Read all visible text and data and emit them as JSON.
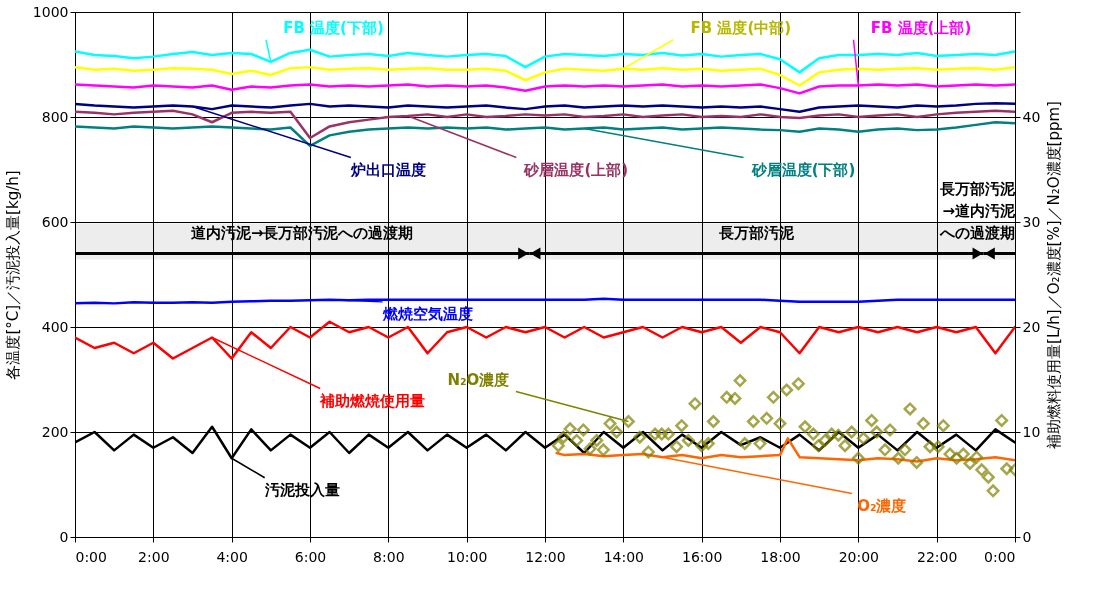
{
  "chart_data": {
    "type": "line",
    "ylabel": "各温度[°C]／汚泥投入量[kg/h]",
    "y2label": "補助燃料使用量[L/h]／O₂濃度[%]／N₂O濃度[ppm]",
    "xlim": [
      0,
      24
    ],
    "xticks": [
      {
        "value": 0,
        "label": "0:00"
      },
      {
        "value": 2,
        "label": "2:00"
      },
      {
        "value": 4,
        "label": "4:00"
      },
      {
        "value": 6,
        "label": "6:00"
      },
      {
        "value": 8,
        "label": "8:00"
      },
      {
        "value": 10,
        "label": "10:00"
      },
      {
        "value": 12,
        "label": "12:00"
      },
      {
        "value": 14,
        "label": "14:00"
      },
      {
        "value": 16,
        "label": "16:00"
      },
      {
        "value": 18,
        "label": "18:00"
      },
      {
        "value": 20,
        "label": "20:00"
      },
      {
        "value": 22,
        "label": "22:00"
      },
      {
        "value": 24,
        "label": "0:00"
      }
    ],
    "ylim": [
      0,
      1000
    ],
    "yticks": [
      0,
      200,
      400,
      600,
      800,
      1000
    ],
    "y2lim": [
      0,
      50
    ],
    "y2ticks": [
      0,
      10,
      20,
      30,
      40,
      {
        "value": 50,
        "label": null
      }
    ],
    "grid": true,
    "x": [
      0,
      0.5,
      1,
      1.5,
      2,
      2.5,
      3,
      3.5,
      4,
      4.5,
      5,
      5.5,
      6,
      6.5,
      7,
      7.5,
      8,
      8.5,
      9,
      9.5,
      10,
      10.5,
      11,
      11.5,
      12,
      12.5,
      13,
      13.5,
      14,
      14.5,
      15,
      15.5,
      16,
      16.5,
      17,
      17.5,
      18,
      18.5,
      19,
      19.5,
      20,
      20.5,
      21,
      21.5,
      22,
      22.5,
      23,
      23.5,
      24
    ],
    "series": [
      {
        "name": "FB 温度(下部)",
        "color": "#00ffff",
        "values": [
          925,
          918,
          916,
          912,
          915,
          920,
          924,
          918,
          922,
          920,
          905,
          922,
          928,
          915,
          918,
          920,
          916,
          922,
          918,
          915,
          918,
          920,
          916,
          895,
          915,
          920,
          918,
          916,
          920,
          918,
          922,
          917,
          920,
          915,
          918,
          920,
          910,
          885,
          912,
          918,
          918,
          920,
          918,
          922,
          916,
          918,
          920,
          918,
          925
        ]
      },
      {
        "name": "FB 温度(中部)",
        "color": "#ffff00",
        "values": [
          895,
          890,
          892,
          888,
          890,
          893,
          892,
          890,
          882,
          888,
          880,
          893,
          895,
          890,
          892,
          893,
          890,
          892,
          893,
          890,
          890,
          892,
          888,
          870,
          885,
          892,
          890,
          888,
          892,
          890,
          893,
          890,
          892,
          888,
          890,
          892,
          880,
          860,
          885,
          890,
          892,
          890,
          892,
          893,
          890,
          892,
          893,
          890,
          895
        ]
      },
      {
        "name": "FB 温度(上部)",
        "color": "#ff00ff",
        "values": [
          862,
          860,
          858,
          856,
          860,
          858,
          856,
          860,
          852,
          858,
          856,
          860,
          862,
          858,
          860,
          858,
          860,
          862,
          858,
          860,
          858,
          860,
          856,
          850,
          858,
          860,
          858,
          860,
          858,
          860,
          862,
          858,
          860,
          858,
          860,
          862,
          855,
          845,
          858,
          860,
          860,
          862,
          860,
          862,
          858,
          860,
          862,
          860,
          862
        ]
      },
      {
        "name": "炉出口温度",
        "color": "#000080",
        "values": [
          825,
          822,
          820,
          818,
          820,
          822,
          820,
          815,
          822,
          820,
          818,
          822,
          825,
          820,
          822,
          820,
          818,
          822,
          820,
          818,
          820,
          822,
          818,
          815,
          820,
          822,
          818,
          820,
          822,
          820,
          822,
          820,
          818,
          820,
          818,
          820,
          815,
          810,
          818,
          820,
          822,
          820,
          818,
          822,
          820,
          822,
          825,
          826,
          825
        ]
      },
      {
        "name": "砂層温度(上部)",
        "color": "#993366",
        "values": [
          810,
          808,
          805,
          808,
          810,
          812,
          805,
          790,
          808,
          810,
          808,
          810,
          760,
          782,
          790,
          795,
          800,
          802,
          805,
          800,
          805,
          800,
          802,
          805,
          803,
          805,
          800,
          802,
          805,
          800,
          803,
          805,
          800,
          802,
          800,
          805,
          800,
          798,
          803,
          805,
          800,
          803,
          805,
          800,
          805,
          808,
          810,
          812,
          810
        ]
      },
      {
        "name": "砂層温度(下部)",
        "color": "#008080",
        "values": [
          782,
          780,
          778,
          782,
          780,
          778,
          780,
          782,
          780,
          778,
          776,
          780,
          745,
          765,
          772,
          776,
          778,
          780,
          778,
          780,
          778,
          780,
          776,
          778,
          780,
          776,
          778,
          780,
          776,
          778,
          780,
          776,
          778,
          780,
          778,
          776,
          775,
          772,
          778,
          776,
          772,
          776,
          778,
          775,
          776,
          780,
          785,
          790,
          788
        ]
      },
      {
        "name": "燃焼空気温度",
        "color": "#0000ff",
        "values": [
          445,
          446,
          445,
          447,
          446,
          446,
          447,
          446,
          448,
          449,
          450,
          450,
          451,
          452,
          451,
          452,
          452,
          452,
          452,
          452,
          452,
          452,
          452,
          452,
          452,
          452,
          452,
          454,
          452,
          452,
          452,
          452,
          452,
          452,
          452,
          452,
          450,
          448,
          448,
          448,
          448,
          450,
          452,
          452,
          452,
          452,
          452,
          452,
          452
        ]
      },
      {
        "name": "汚泥投入量",
        "color": "#000000",
        "values": [
          180,
          200,
          165,
          195,
          170,
          190,
          160,
          210,
          150,
          205,
          165,
          195,
          170,
          200,
          160,
          195,
          170,
          200,
          165,
          195,
          170,
          195,
          165,
          200,
          170,
          195,
          160,
          200,
          170,
          200,
          165,
          195,
          170,
          200,
          175,
          190,
          170,
          195,
          165,
          200,
          170,
          195,
          165,
          200,
          170,
          195,
          165,
          205,
          180
        ]
      },
      {
        "name": "補助燃焼使用量",
        "color": "#ff0000",
        "axis": "y2",
        "values": [
          19.0,
          18.0,
          18.5,
          17.5,
          18.5,
          17.0,
          18.0,
          19.0,
          17.0,
          19.5,
          18.0,
          20.0,
          19.0,
          20.5,
          19.5,
          20.0,
          19.0,
          20.0,
          17.5,
          19.5,
          20.0,
          19.0,
          20.0,
          19.5,
          20.0,
          19.0,
          20.0,
          19.0,
          19.5,
          20.0,
          19.0,
          20.0,
          19.5,
          20.0,
          18.5,
          20.0,
          19.5,
          17.5,
          20.0,
          19.5,
          20.0,
          19.5,
          20.0,
          19.5,
          20.0,
          19.5,
          20.0,
          17.5,
          20.0
        ]
      },
      {
        "name": "O₂濃度",
        "color": "#ff6600",
        "axis": "y2",
        "x": [
          12.3,
          12.5,
          13,
          13.5,
          14,
          14.5,
          15,
          15.5,
          16,
          16.5,
          17,
          17.5,
          18,
          18.2,
          18.5,
          19,
          19.5,
          20,
          20.5,
          21,
          21.5,
          22,
          22.5,
          23,
          23.5,
          24
        ],
        "values": [
          8.0,
          7.8,
          7.9,
          7.7,
          7.8,
          7.9,
          7.6,
          7.8,
          7.5,
          7.8,
          7.6,
          7.7,
          7.8,
          9.4,
          7.6,
          7.5,
          7.4,
          7.3,
          7.5,
          7.4,
          7.2,
          7.5,
          7.3,
          7.4,
          7.6,
          7.3
        ]
      },
      {
        "name": "N₂O濃度",
        "color": "#808000",
        "axis": "y2",
        "type": "scatter",
        "marker": "diamond",
        "x": [
          12.34,
          12.47,
          12.64,
          12.81,
          12.98,
          13.15,
          13.32,
          13.49,
          13.66,
          13.83,
          14.13,
          14.42,
          14.64,
          14.81,
          14.98,
          15.15,
          15.36,
          15.49,
          15.66,
          15.83,
          16.0,
          16.17,
          16.3,
          16.64,
          16.85,
          16.98,
          17.1,
          17.32,
          17.49,
          17.66,
          17.83,
          18.0,
          18.17,
          18.47,
          18.64,
          18.85,
          18.98,
          19.15,
          19.32,
          19.49,
          19.66,
          19.83,
          20.0,
          20.13,
          20.34,
          20.47,
          20.68,
          20.81,
          21.02,
          21.19,
          21.32,
          21.49,
          21.66,
          21.83,
          22.04,
          22.17,
          22.34,
          22.51,
          22.68,
          22.85,
          23.02,
          23.15,
          23.32,
          23.44,
          23.66,
          23.79,
          24.0
        ],
        "values": [
          8.7,
          9.5,
          10.3,
          9.2,
          10.2,
          8.4,
          9.2,
          8.3,
          10.8,
          10.0,
          11.0,
          9.5,
          8.1,
          9.8,
          9.8,
          9.8,
          8.6,
          10.6,
          9.2,
          12.7,
          8.7,
          8.9,
          11.0,
          13.3,
          13.2,
          14.9,
          8.9,
          11.0,
          8.9,
          11.3,
          13.3,
          10.8,
          14.0,
          14.6,
          10.5,
          9.8,
          8.7,
          9.2,
          9.8,
          9.7,
          8.7,
          10.0,
          7.5,
          9.4,
          11.1,
          10.0,
          8.3,
          10.2,
          7.5,
          8.3,
          12.2,
          7.1,
          10.8,
          8.6,
          8.6,
          10.6,
          7.9,
          7.5,
          7.9,
          7.0,
          7.6,
          6.4,
          5.7,
          4.4,
          11.1,
          6.5,
          6.4
        ]
      }
    ],
    "bands": [
      {
        "axis": "x",
        "from": 0,
        "to": 11.6,
        "label": "道内汚泥→長万部汚泥への過渡期"
      },
      {
        "axis": "x",
        "from": 11.6,
        "to": 23.2,
        "label": "長万部汚泥"
      },
      {
        "axis": "x",
        "from": 23.2,
        "to": 24,
        "label": "長万部汚泥→道内汚泥への過渡期"
      }
    ]
  }
}
